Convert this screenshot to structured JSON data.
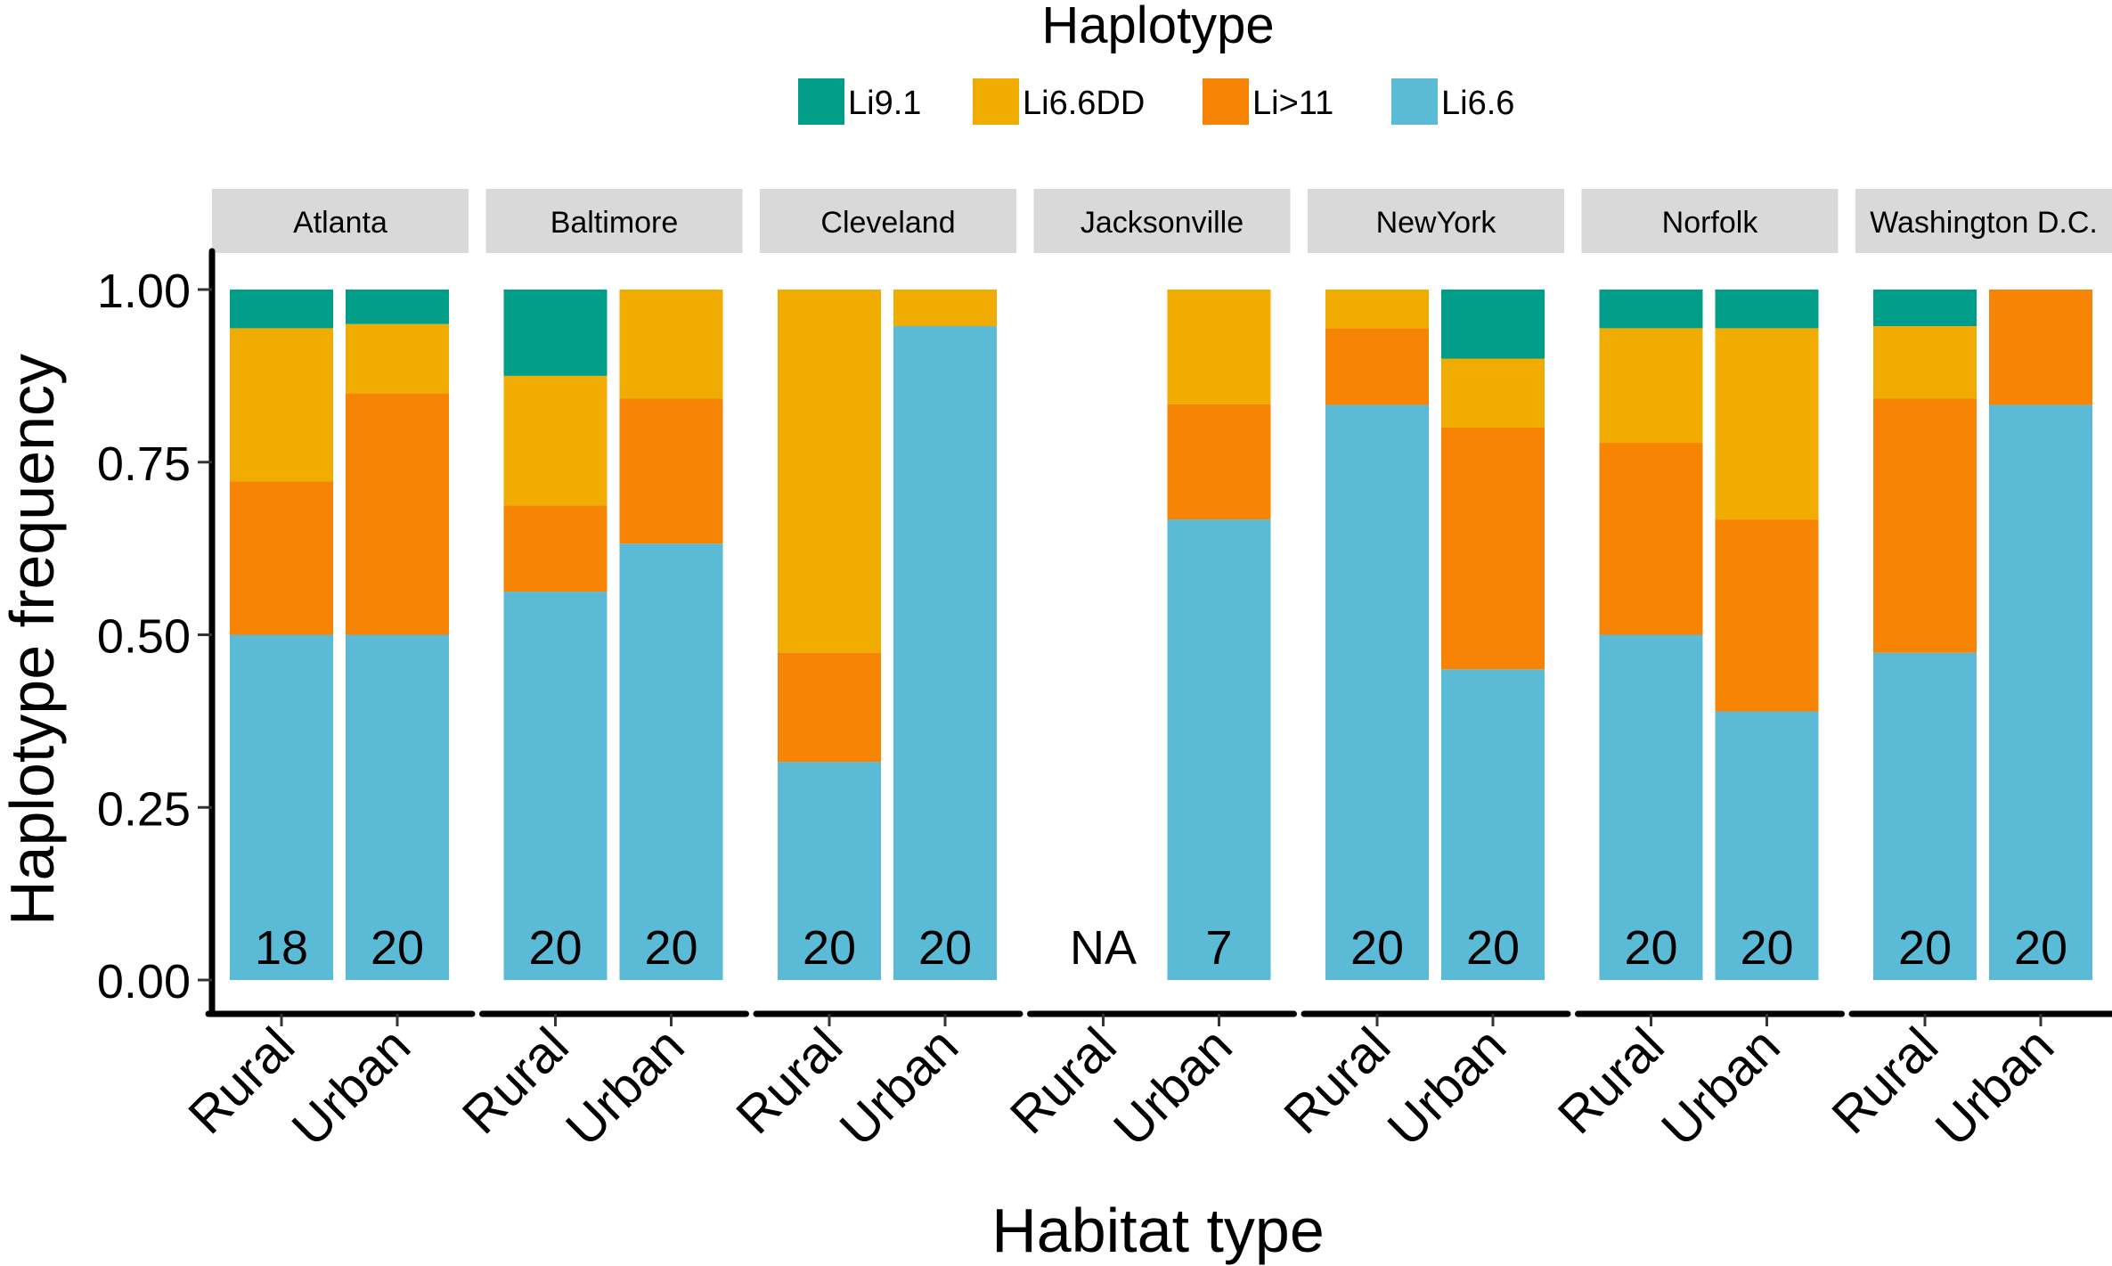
{
  "chart_data": {
    "type": "bar",
    "stacked": true,
    "faceted": true,
    "xlabel": "Habitat type",
    "ylabel": "Haplotype frequency",
    "ylim": [
      0,
      1
    ],
    "yticks": [
      "0.00",
      "0.25",
      "0.50",
      "0.75",
      "1.00"
    ],
    "categories": [
      "Rural",
      "Urban"
    ],
    "legend": {
      "title": "Haplotype",
      "position": "top",
      "entries": [
        {
          "name": "Li9.1",
          "color": "#009E88"
        },
        {
          "name": "Li6.6DD",
          "color": "#F0AC00"
        },
        {
          "name": "Li>11",
          "color": "#F78404"
        },
        {
          "name": "Li6.6",
          "color": "#5BBAD5"
        }
      ]
    },
    "stack_order": [
      "Li6.6",
      "Li>11",
      "Li6.6DD",
      "Li9.1"
    ],
    "facets": [
      {
        "name": "Atlanta",
        "bars": [
          {
            "habitat": "Rural",
            "n": "18",
            "values": {
              "Li6.6": 0.5,
              "Li>11": 0.222,
              "Li6.6DD": 0.222,
              "Li9.1": 0.056
            }
          },
          {
            "habitat": "Urban",
            "n": "20",
            "values": {
              "Li6.6": 0.5,
              "Li>11": 0.35,
              "Li6.6DD": 0.1,
              "Li9.1": 0.05
            }
          }
        ]
      },
      {
        "name": "Baltimore",
        "bars": [
          {
            "habitat": "Rural",
            "n": "20",
            "values": {
              "Li6.6": 0.5625,
              "Li>11": 0.125,
              "Li6.6DD": 0.1875,
              "Li9.1": 0.125
            }
          },
          {
            "habitat": "Urban",
            "n": "20",
            "values": {
              "Li6.6": 0.632,
              "Li>11": 0.21,
              "Li6.6DD": 0.158,
              "Li9.1": 0.0
            }
          }
        ]
      },
      {
        "name": "Cleveland",
        "bars": [
          {
            "habitat": "Rural",
            "n": "20",
            "values": {
              "Li6.6": 0.316,
              "Li>11": 0.158,
              "Li6.6DD": 0.526,
              "Li9.1": 0.0
            }
          },
          {
            "habitat": "Urban",
            "n": "20",
            "values": {
              "Li6.6": 0.947,
              "Li>11": 0.0,
              "Li6.6DD": 0.053,
              "Li9.1": 0.0
            }
          }
        ]
      },
      {
        "name": "Jacksonville",
        "bars": [
          {
            "habitat": "Rural",
            "n": "NA",
            "values": null
          },
          {
            "habitat": "Urban",
            "n": "7",
            "values": {
              "Li6.6": 0.667,
              "Li>11": 0.167,
              "Li6.6DD": 0.166,
              "Li9.1": 0.0
            }
          }
        ]
      },
      {
        "name": "NewYork",
        "bars": [
          {
            "habitat": "Rural",
            "n": "20",
            "values": {
              "Li6.6": 0.833,
              "Li>11": 0.111,
              "Li6.6DD": 0.056,
              "Li9.1": 0.0
            }
          },
          {
            "habitat": "Urban",
            "n": "20",
            "values": {
              "Li6.6": 0.45,
              "Li>11": 0.35,
              "Li6.6DD": 0.1,
              "Li9.1": 0.1
            }
          }
        ]
      },
      {
        "name": "Norfolk",
        "bars": [
          {
            "habitat": "Rural",
            "n": "20",
            "values": {
              "Li6.6": 0.5,
              "Li>11": 0.278,
              "Li6.6DD": 0.166,
              "Li9.1": 0.056
            }
          },
          {
            "habitat": "Urban",
            "n": "20",
            "values": {
              "Li6.6": 0.389,
              "Li>11": 0.278,
              "Li6.6DD": 0.277,
              "Li9.1": 0.056
            }
          }
        ]
      },
      {
        "name": "Washington D.C.",
        "bars": [
          {
            "habitat": "Rural",
            "n": "20",
            "values": {
              "Li6.6": 0.474,
              "Li>11": 0.368,
              "Li6.6DD": 0.105,
              "Li9.1": 0.053
            }
          },
          {
            "habitat": "Urban",
            "n": "20",
            "values": {
              "Li6.6": 0.833,
              "Li>11": 0.167,
              "Li6.6DD": 0.0,
              "Li9.1": 0.0
            }
          }
        ]
      }
    ]
  }
}
